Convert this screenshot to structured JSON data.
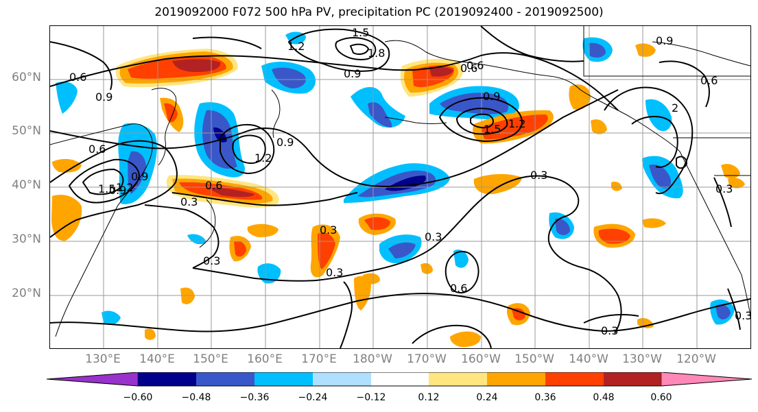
{
  "title": "2019092000 F072 500 hPa PV, precipitation PC (2019092400 - 2019092500)",
  "lat_labels": [
    "60°N",
    "50°N",
    "40°N",
    "30°N",
    "20°N"
  ],
  "lon_labels": [
    "130°E",
    "140°E",
    "150°E",
    "160°E",
    "170°E",
    "180°W",
    "170°W",
    "160°W",
    "150°W",
    "140°W",
    "130°W",
    "120°W"
  ],
  "contour_labels": [
    "1.5",
    "1.2",
    "1.8",
    "0.9",
    "0.6",
    "0.9",
    "0.6",
    "0.9",
    "1.5",
    "1.2",
    "0.9",
    "0.6",
    "0.9",
    "1.2",
    "0.9",
    "0.6",
    "0.9",
    "1.5",
    "1.2",
    "0.6",
    "0.6",
    "0.3",
    "0.3",
    "0.3",
    "0.3",
    "0.3",
    "0.3",
    "0.6",
    "0.3",
    "0.3",
    "0.3",
    "2"
  ],
  "colorbar": {
    "ticks": [
      "−0.60",
      "−0.48",
      "−0.36",
      "−0.24",
      "−0.12",
      "0.12",
      "0.24",
      "0.36",
      "0.48",
      "0.60"
    ],
    "colors": [
      "#9932cc",
      "#00008b",
      "#3a57c9",
      "#00bfff",
      "#b0e0ff",
      "#ffffff",
      "#ffe680",
      "#ffa500",
      "#ff4000",
      "#b22222",
      "#ff88b8"
    ]
  },
  "colors": {
    "contour": "#000000",
    "grid": "#808080",
    "axis_label": "#808080"
  }
}
